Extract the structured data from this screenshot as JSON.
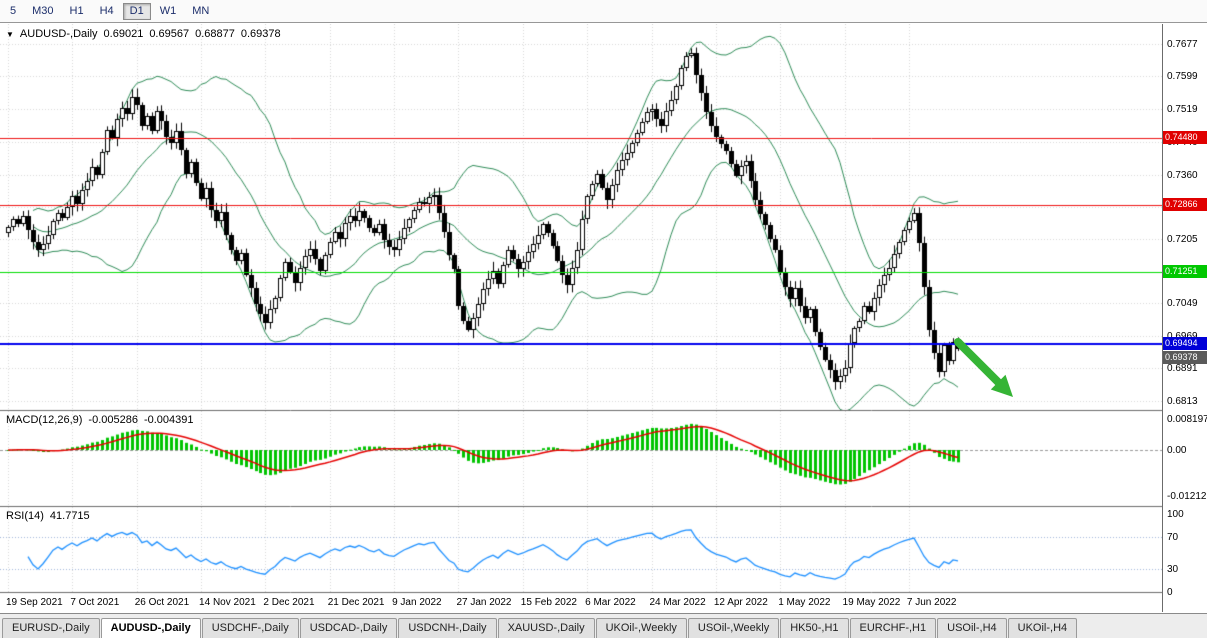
{
  "toolbar": {
    "timeframes": [
      {
        "label": "5"
      },
      {
        "label": "M30"
      },
      {
        "label": "H1"
      },
      {
        "label": "H4"
      },
      {
        "label": "D1",
        "active": true
      },
      {
        "label": "W1"
      },
      {
        "label": "MN"
      }
    ]
  },
  "chart_info": {
    "symbol": "AUDUSD-,Daily",
    "open": "0.69021",
    "high": "0.69567",
    "low": "0.68877",
    "close": "0.69378"
  },
  "indicators": {
    "macd": {
      "name": "MACD(12,26,9)",
      "value1": "-0.005286",
      "value2": "-0.004391",
      "axis": [
        {
          "label": "0.008197",
          "value": 0.008197
        },
        {
          "label": "0.00",
          "value": 0
        },
        {
          "label": "-0.01212",
          "value": -0.01212
        }
      ],
      "ylim": [
        -0.0146,
        0.0106
      ],
      "colors": {
        "histogram": "#00c400",
        "signal": "#e60000"
      }
    },
    "rsi": {
      "name": "RSI(14)",
      "value": "41.7715",
      "axis": [
        {
          "label": "100",
          "value": 100
        },
        {
          "label": "70",
          "value": 70
        },
        {
          "label": "30",
          "value": 30
        },
        {
          "label": "0",
          "value": 0
        }
      ],
      "levels": [
        70,
        30
      ],
      "color": "#1E90FF"
    }
  },
  "chart_data": {
    "type": "candlestick",
    "symbol": "AUDUSD-,Daily",
    "ylim": [
      0.6795,
      0.7725
    ],
    "x_labels": [
      "19 Sep 2021",
      "7 Oct 2021",
      "26 Oct 2021",
      "14 Nov 2021",
      "2 Dec 2021",
      "21 Dec 2021",
      "9 Jan 2022",
      "27 Jan 2022",
      "15 Feb 2022",
      "6 Mar 2022",
      "24 Mar 2022",
      "12 Apr 2022",
      "1 May 2022",
      "19 May 2022",
      "7 Jun 2022"
    ],
    "bars_per_label": 13,
    "closes": [
      0.7233,
      0.7252,
      0.724,
      0.7261,
      0.7225,
      0.7198,
      0.7178,
      0.7192,
      0.7215,
      0.7248,
      0.7268,
      0.7255,
      0.7282,
      0.7308,
      0.729,
      0.7322,
      0.7345,
      0.7378,
      0.736,
      0.7415,
      0.7468,
      0.745,
      0.7495,
      0.7522,
      0.7508,
      0.7548,
      0.753,
      0.7478,
      0.7502,
      0.7465,
      0.7515,
      0.749,
      0.7452,
      0.7438,
      0.7465,
      0.742,
      0.7362,
      0.739,
      0.734,
      0.7302,
      0.7328,
      0.7275,
      0.7248,
      0.727,
      0.7215,
      0.7178,
      0.715,
      0.717,
      0.7118,
      0.7085,
      0.7048,
      0.7022,
      0.7,
      0.7035,
      0.7062,
      0.711,
      0.7148,
      0.7125,
      0.7098,
      0.7135,
      0.7162,
      0.718,
      0.7155,
      0.7128,
      0.7165,
      0.7198,
      0.7222,
      0.7205,
      0.7242,
      0.726,
      0.7248,
      0.7272,
      0.7255,
      0.723,
      0.7218,
      0.724,
      0.7202,
      0.7185,
      0.7178,
      0.7205,
      0.7232,
      0.7252,
      0.7275,
      0.7295,
      0.7288,
      0.7305,
      0.7312,
      0.7268,
      0.7222,
      0.7165,
      0.7132,
      0.7042,
      0.7005,
      0.6985,
      0.7012,
      0.7048,
      0.7082,
      0.7108,
      0.7128,
      0.7095,
      0.7142,
      0.7178,
      0.7155,
      0.7132,
      0.7148,
      0.7172,
      0.7192,
      0.7215,
      0.724,
      0.7218,
      0.7188,
      0.7152,
      0.7118,
      0.7092,
      0.7135,
      0.7178,
      0.7252,
      0.7308,
      0.7338,
      0.7362,
      0.7328,
      0.7298,
      0.7335,
      0.7372,
      0.7395,
      0.7412,
      0.7438,
      0.7462,
      0.7488,
      0.7512,
      0.7518,
      0.7495,
      0.7478,
      0.7515,
      0.7542,
      0.7575,
      0.7618,
      0.7648,
      0.7655,
      0.7602,
      0.7558,
      0.7512,
      0.7478,
      0.7452,
      0.7435,
      0.7418,
      0.7385,
      0.7358,
      0.7382,
      0.7392,
      0.7345,
      0.7298,
      0.7265,
      0.7238,
      0.7205,
      0.7178,
      0.7122,
      0.7088,
      0.7058,
      0.7085,
      0.7042,
      0.7012,
      0.7035,
      0.6978,
      0.6942,
      0.6912,
      0.6888,
      0.6858,
      0.6872,
      0.6892,
      0.6952,
      0.6988,
      0.7005,
      0.7042,
      0.7028,
      0.7062,
      0.7092,
      0.7118,
      0.7135,
      0.7168,
      0.7198,
      0.7225,
      0.7248,
      0.7268,
      0.7195,
      0.7088,
      0.6985,
      0.6928,
      0.6882,
      0.6948,
      0.6908,
      0.6955,
      0.69378
    ],
    "last_ohlc": {
      "open": 0.69021,
      "high": 0.69567,
      "low": 0.68877,
      "close": 0.69378
    },
    "y_axis_labels": [
      {
        "label": "0.7677",
        "price": 0.7677
      },
      {
        "label": "0.7599",
        "price": 0.7599
      },
      {
        "label": "0.7519",
        "price": 0.7519
      },
      {
        "label": "0.7440",
        "price": 0.744
      },
      {
        "label": "0.7360",
        "price": 0.736
      },
      {
        "label": "0.7282",
        "price": 0.7282
      },
      {
        "label": "0.7205",
        "price": 0.7205
      },
      {
        "label": "0.7125",
        "price": 0.7125
      },
      {
        "label": "0.7049",
        "price": 0.7049
      },
      {
        "label": "0.6969",
        "price": 0.6969
      },
      {
        "label": "0.6891",
        "price": 0.6891
      },
      {
        "label": "0.6813",
        "price": 0.6813
      }
    ],
    "bollinger": {
      "period": 20,
      "deviation": 1.9,
      "color": "#2e8b57"
    },
    "hlines": [
      {
        "price": 0.7448,
        "label": "0.74480",
        "color": "#ee1111",
        "badge": "#e00000",
        "width": 1
      },
      {
        "price": 0.72866,
        "label": "0.72866",
        "color": "#ee1111",
        "badge": "#e00000",
        "width": 1
      },
      {
        "price": 0.71251,
        "label": "0.71251",
        "color": "#00dd00",
        "badge": "#00c800",
        "width": 1
      },
      {
        "price": 0.69494,
        "label": "0.69494",
        "color": "#0000ee",
        "badge": "#0000d8",
        "width": 2
      }
    ],
    "bid": {
      "label": "0.69378",
      "price": 0.69378,
      "badge": "#5a5a5a"
    },
    "annotation_arrow": {
      "direction": "down-right",
      "color": "#35b435"
    }
  },
  "tabs": {
    "items": [
      {
        "label": "EURUSD-,Daily"
      },
      {
        "label": "AUDUSD-,Daily",
        "active": true
      },
      {
        "label": "USDCHF-,Daily"
      },
      {
        "label": "USDCAD-,Daily"
      },
      {
        "label": "USDCNH-,Daily"
      },
      {
        "label": "XAUUSD-,Daily"
      },
      {
        "label": "UKOil-,Weekly"
      },
      {
        "label": "USOil-,Weekly"
      },
      {
        "label": "HK50-,H1"
      },
      {
        "label": "EURCHF-,H1"
      },
      {
        "label": "USOil-,H4"
      },
      {
        "label": "UKOil-,H4"
      }
    ]
  }
}
